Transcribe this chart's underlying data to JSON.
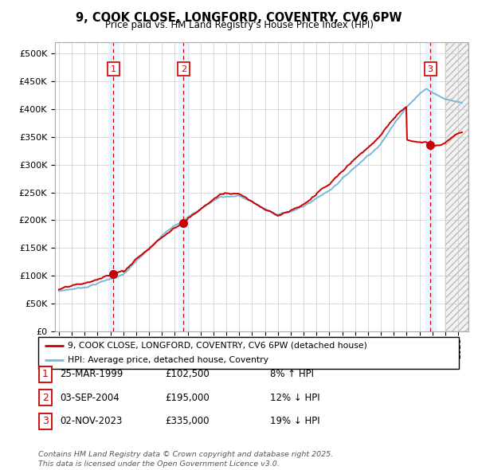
{
  "title": "9, COOK CLOSE, LONGFORD, COVENTRY, CV6 6PW",
  "subtitle": "Price paid vs. HM Land Registry's House Price Index (HPI)",
  "ylim": [
    0,
    520000
  ],
  "yticks": [
    0,
    50000,
    100000,
    150000,
    200000,
    250000,
    300000,
    350000,
    400000,
    450000,
    500000
  ],
  "xlim_start": 1994.7,
  "xlim_end": 2026.8,
  "legend_entries": [
    "9, COOK CLOSE, LONGFORD, COVENTRY, CV6 6PW (detached house)",
    "HPI: Average price, detached house, Coventry"
  ],
  "sale_dates": [
    1999.23,
    2004.67,
    2023.84
  ],
  "sale_prices": [
    102500,
    195000,
    335000
  ],
  "sale_labels": [
    "1",
    "2",
    "3"
  ],
  "row_dates": [
    "25-MAR-1999",
    "03-SEP-2004",
    "02-NOV-2023"
  ],
  "row_prices": [
    "£102,500",
    "£195,000",
    "£335,000"
  ],
  "row_hpi": [
    "8% ↑ HPI",
    "12% ↓ HPI",
    "19% ↓ HPI"
  ],
  "footer": "Contains HM Land Registry data © Crown copyright and database right 2025.\nThis data is licensed under the Open Government Licence v3.0.",
  "hpi_color": "#7ab8d9",
  "price_color": "#cc0000",
  "shade_color": "#ddeeff",
  "label_box_color": "#cc0000",
  "grid_color": "#cccccc",
  "future_hatch_color": "#cccccc"
}
